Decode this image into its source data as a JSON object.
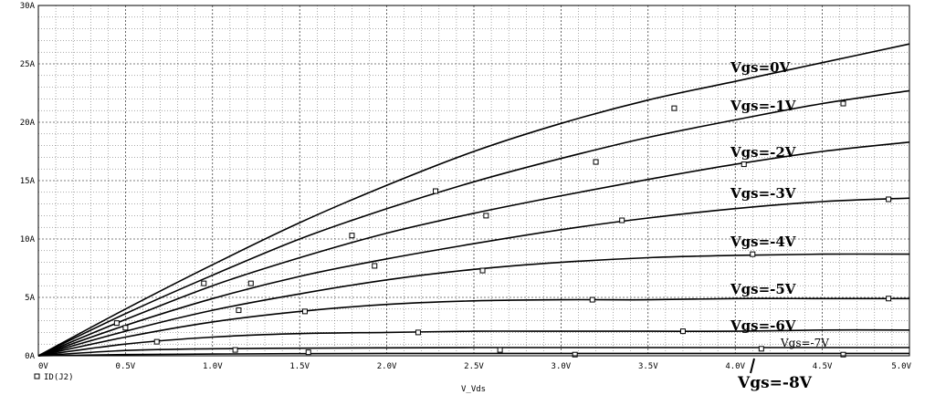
{
  "chart_data": {
    "type": "line",
    "xlabel": "V_Vds",
    "ylabel": "",
    "xlim": [
      0,
      5
    ],
    "ylim": [
      0,
      30
    ],
    "x_ticks": [
      "0V",
      "0.5V",
      "1.0V",
      "1.5V",
      "2.0V",
      "2.5V",
      "3.0V",
      "3.5V",
      "4.0V",
      "4.5V",
      "5.0V"
    ],
    "y_ticks": [
      "0A",
      "5A",
      "10A",
      "15A",
      "20A",
      "25A",
      "30A"
    ],
    "grid": "major and minor dotted",
    "legend": {
      "marker": "square",
      "label": "ID(J2)",
      "position": "bottom-left"
    },
    "marker_color": "#000000",
    "line_color": "#000000",
    "series": [
      {
        "label": "Vgs=0V",
        "x": [
          0,
          0.5,
          1.0,
          1.5,
          2.0,
          2.5,
          3.0,
          3.5,
          4.0,
          4.5,
          5.0
        ],
        "y": [
          0,
          4.0,
          7.8,
          11.4,
          14.6,
          17.5,
          19.9,
          21.9,
          23.5,
          25.1,
          26.7
        ],
        "markers": [
          [
            0.95,
            6.2
          ],
          [
            2.28,
            14.1
          ],
          [
            3.65,
            21.2
          ]
        ]
      },
      {
        "label": "Vgs=-1V",
        "x": [
          0,
          0.5,
          1.0,
          1.5,
          2.0,
          2.5,
          3.0,
          3.5,
          4.0,
          4.5,
          5.0
        ],
        "y": [
          0,
          3.6,
          6.9,
          10.0,
          12.6,
          14.9,
          16.9,
          18.7,
          20.2,
          21.6,
          22.7
        ],
        "markers": [
          [
            1.22,
            6.2
          ],
          [
            1.8,
            10.3
          ],
          [
            3.2,
            16.6
          ],
          [
            4.62,
            21.6
          ]
        ]
      },
      {
        "label": "Vgs=-2V",
        "x": [
          0,
          0.5,
          1.0,
          1.5,
          2.0,
          2.5,
          3.0,
          3.5,
          4.0,
          4.5,
          5.0
        ],
        "y": [
          0,
          3.1,
          6.0,
          8.4,
          10.5,
          12.2,
          13.7,
          15.1,
          16.4,
          17.5,
          18.3
        ],
        "markers": [
          [
            0.45,
            2.8
          ],
          [
            1.93,
            7.7
          ],
          [
            2.57,
            12.0
          ],
          [
            4.05,
            16.4
          ]
        ]
      },
      {
        "label": "Vgs=-3V",
        "x": [
          0,
          0.5,
          1.0,
          1.5,
          2.0,
          2.5,
          3.0,
          3.5,
          4.0,
          4.5,
          5.0
        ],
        "y": [
          0,
          2.6,
          4.9,
          6.8,
          8.3,
          9.6,
          10.8,
          11.8,
          12.6,
          13.2,
          13.5
        ],
        "markers": [
          [
            0.5,
            2.4
          ],
          [
            1.15,
            3.9
          ],
          [
            3.35,
            11.6
          ],
          [
            4.88,
            13.4
          ]
        ]
      },
      {
        "label": "Vgs=-4V",
        "x": [
          0,
          0.5,
          1.0,
          1.5,
          2.0,
          2.5,
          3.0,
          3.5,
          4.0,
          4.5,
          5.0
        ],
        "y": [
          0,
          2.1,
          3.9,
          5.3,
          6.5,
          7.4,
          8.0,
          8.4,
          8.6,
          8.7,
          8.7
        ],
        "markers": [
          [
            0.68,
            1.2
          ],
          [
            1.53,
            3.8
          ],
          [
            2.55,
            7.3
          ],
          [
            4.1,
            8.7
          ]
        ]
      },
      {
        "label": "Vgs=-5V",
        "x": [
          0,
          0.5,
          1.0,
          1.5,
          2.0,
          2.5,
          3.0,
          3.5,
          4.0,
          4.5,
          5.0
        ],
        "y": [
          0,
          1.6,
          2.9,
          3.8,
          4.4,
          4.7,
          4.8,
          4.8,
          4.9,
          4.9,
          4.9
        ],
        "markers": [
          [
            1.13,
            0.5
          ],
          [
            3.18,
            4.8
          ],
          [
            4.88,
            4.9
          ]
        ]
      },
      {
        "label": "Vgs=-6V",
        "x": [
          0,
          0.5,
          1.0,
          1.5,
          2.0,
          2.5,
          3.0,
          3.5,
          4.0,
          4.5,
          5.0
        ],
        "y": [
          0,
          1.0,
          1.6,
          1.9,
          2.0,
          2.1,
          2.1,
          2.1,
          2.1,
          2.2,
          2.2
        ],
        "markers": [
          [
            2.18,
            2.0
          ],
          [
            3.7,
            2.1
          ]
        ]
      },
      {
        "label": "Vgs=-7V",
        "x": [
          0,
          0.5,
          1.0,
          1.5,
          2.0,
          2.5,
          3.0,
          3.5,
          4.0,
          4.5,
          5.0
        ],
        "y": [
          0,
          0.45,
          0.6,
          0.65,
          0.68,
          0.7,
          0.7,
          0.7,
          0.7,
          0.7,
          0.7
        ],
        "markers": [
          [
            1.55,
            0.3
          ],
          [
            2.65,
            0.5
          ],
          [
            4.15,
            0.6
          ]
        ]
      },
      {
        "label": "Vgs=-8V",
        "x": [
          0,
          0.5,
          1.0,
          1.5,
          2.0,
          2.5,
          3.0,
          3.5,
          4.0,
          4.5,
          5.0
        ],
        "y": [
          0,
          0.1,
          0.15,
          0.18,
          0.2,
          0.2,
          0.2,
          0.2,
          0.2,
          0.2,
          0.2
        ],
        "markers": [
          [
            3.08,
            0.1
          ],
          [
            4.62,
            0.1
          ]
        ]
      }
    ]
  }
}
